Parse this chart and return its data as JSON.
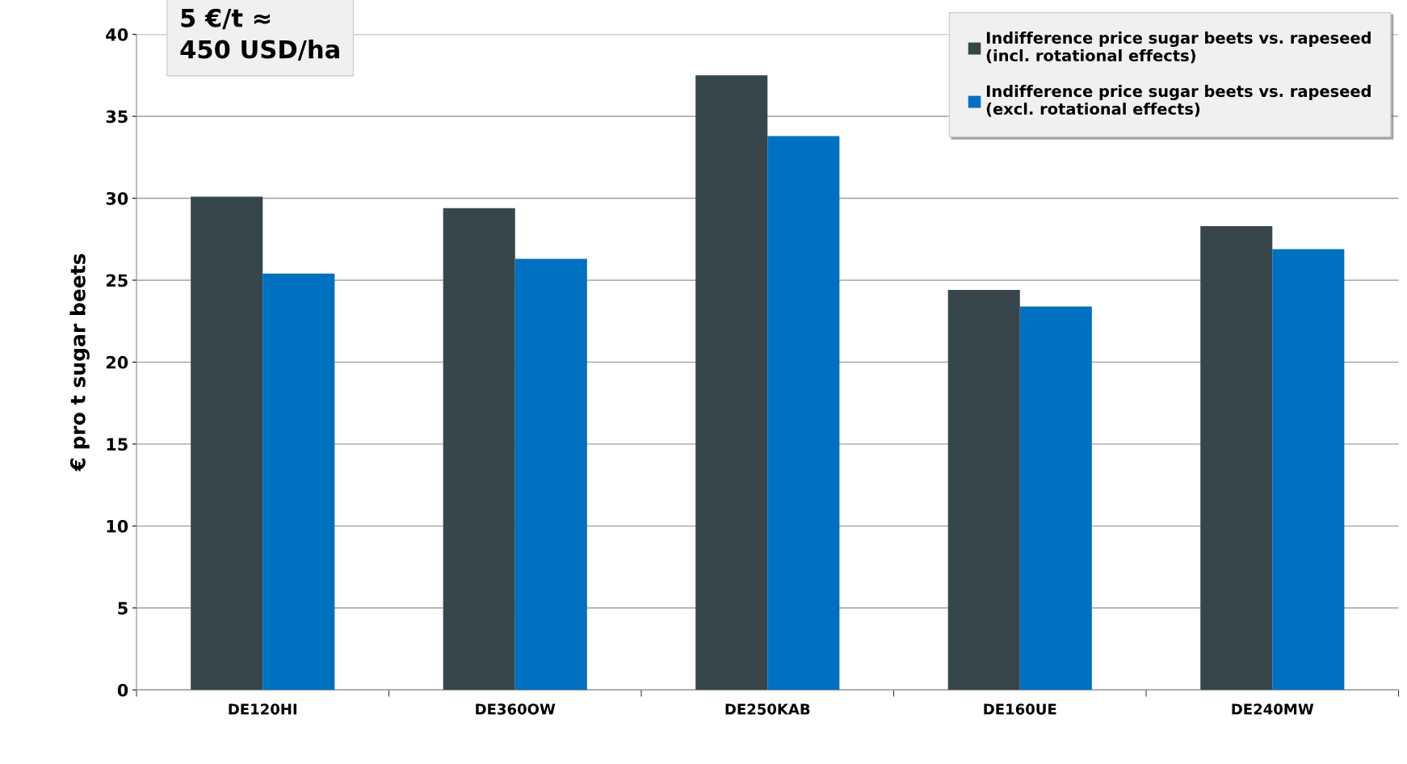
{
  "chart_data": {
    "type": "bar",
    "ylabel": "€ pro t sugar beets",
    "categories": [
      "DE120HI",
      "DE360OW",
      "DE250KAB",
      "DE160UE",
      "DE240MW"
    ],
    "series": [
      {
        "name": "Indifference price sugar beets vs. rapeseed\n(incl. rotational effects)",
        "color": "#37464b",
        "values": [
          30.1,
          29.4,
          37.5,
          24.4,
          28.3
        ]
      },
      {
        "name": "Indifference price sugar beets vs. rapeseed\n(excl. rotational effects)",
        "color": "#0070c0",
        "values": [
          25.4,
          26.3,
          33.8,
          23.4,
          26.9
        ]
      }
    ],
    "ylim": [
      0,
      40
    ],
    "yticks": [
      0,
      5,
      10,
      15,
      20,
      25,
      30,
      35,
      40
    ],
    "grid": "y",
    "legend": "top right",
    "annotations": [
      "5 €/t ≈\n450 USD/ha"
    ]
  }
}
